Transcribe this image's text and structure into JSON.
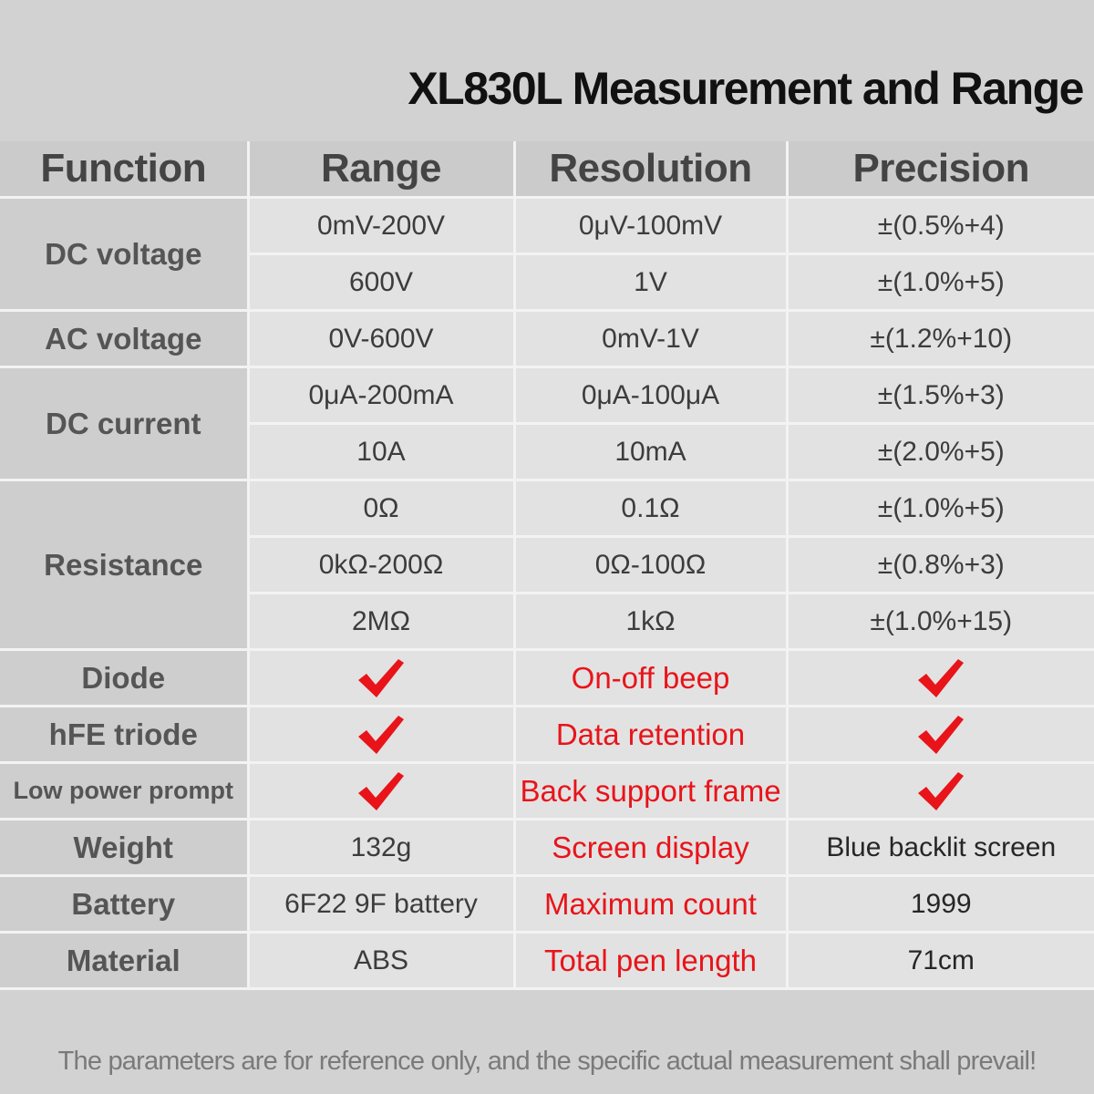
{
  "title": "XL830L Measurement and Range",
  "headers": {
    "function": "Function",
    "range": "Range",
    "resolution": "Resolution",
    "precision": "Precision"
  },
  "dc_voltage": {
    "label": "DC voltage",
    "rows": [
      {
        "range": "0mV-200V",
        "resolution": "0μV-100mV",
        "precision": "±(0.5%+4)"
      },
      {
        "range": "600V",
        "resolution": "1V",
        "precision": "±(1.0%+5)"
      }
    ]
  },
  "ac_voltage": {
    "label": "AC voltage",
    "rows": [
      {
        "range": "0V-600V",
        "resolution": "0mV-1V",
        "precision": "±(1.2%+10)"
      }
    ]
  },
  "dc_current": {
    "label": "DC current",
    "rows": [
      {
        "range": "0μA-200mA",
        "resolution": "0μA-100μA",
        "precision": "±(1.5%+3)"
      },
      {
        "range": "10A",
        "resolution": "10mA",
        "precision": "±(2.0%+5)"
      }
    ]
  },
  "resistance": {
    "label": "Resistance",
    "rows": [
      {
        "range": "0Ω",
        "resolution": "0.1Ω",
        "precision": "±(1.0%+5)"
      },
      {
        "range": "0kΩ-200Ω",
        "resolution": "0Ω-100Ω",
        "precision": "±(0.8%+3)"
      },
      {
        "range": "2MΩ",
        "resolution": "1kΩ",
        "precision": "±(1.0%+15)"
      }
    ]
  },
  "features": [
    {
      "label": "Diode",
      "range_check": true,
      "feature": "On-off beep",
      "precision_check": true
    },
    {
      "label": "hFE triode",
      "range_check": true,
      "feature": "Data retention",
      "precision_check": true
    },
    {
      "label": "Low power prompt",
      "range_check": true,
      "feature": "Back support frame",
      "precision_check": true
    }
  ],
  "specs": [
    {
      "label": "Weight",
      "value": "132g",
      "feature": "Screen display",
      "detail": "Blue backlit screen"
    },
    {
      "label": "Battery",
      "value": "6F22 9F battery",
      "feature": "Maximum count",
      "detail": "1999"
    },
    {
      "label": "Material",
      "value": "ABS",
      "feature": "Total pen length",
      "detail": "71cm"
    }
  ],
  "colors": {
    "feature_text": "#e8141a",
    "checkmark": "#e8141a"
  },
  "icons": {
    "supported": "checkmark-icon"
  },
  "footer": "The parameters are for reference only, and the specific actual measurement shall prevail!"
}
